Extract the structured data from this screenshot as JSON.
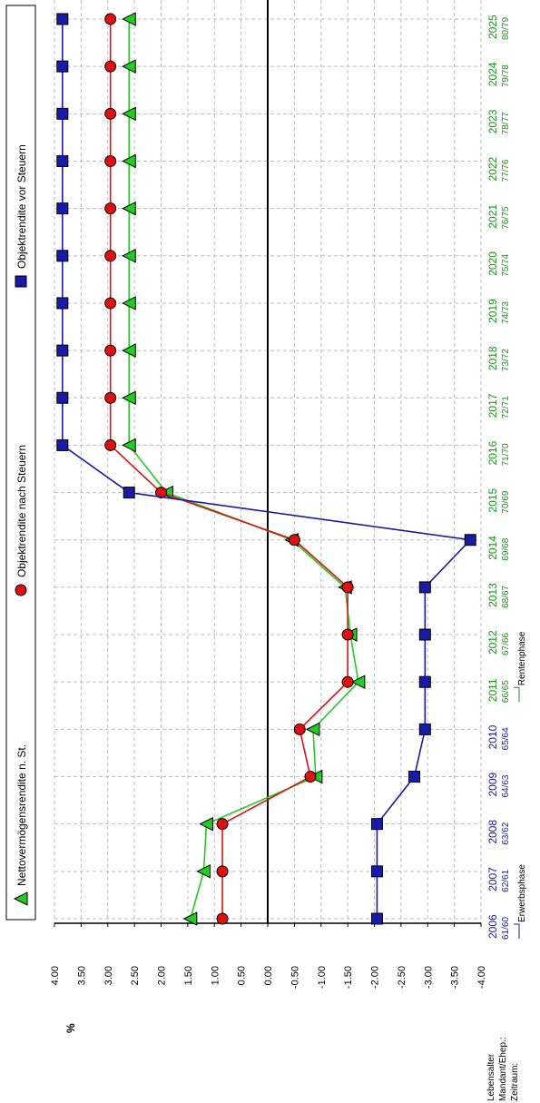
{
  "colors": {
    "nett": "#22cc22",
    "nach": "#dd1111",
    "vor": "#1a1aa8",
    "phase_blue": "#1a1aa8",
    "phase_green": "#159615",
    "grid": "#bdbdbd"
  },
  "bottom_labels": {
    "lebensalter": "Lebensalter",
    "mandant": "Mandant/Ehep.:",
    "zeitraum": "Zeitraum:"
  },
  "chart_data": {
    "type": "line",
    "ylabel": "%",
    "ylim": [
      -4,
      4
    ],
    "y_ticks": [
      "4.00",
      "3.50",
      "3.00",
      "2.50",
      "2.00",
      "1.50",
      "1.00",
      "0.50",
      "0.00",
      "-0.50",
      "-1.00",
      "-1.50",
      "-2.00",
      "-2.50",
      "-3.00",
      "-3.50",
      "-4.00"
    ],
    "y_tick_values": [
      4,
      3.5,
      3,
      2.5,
      2,
      1.5,
      1,
      0.5,
      0,
      -0.5,
      -1,
      -1.5,
      -2,
      -2.5,
      -3,
      -3.5,
      -4
    ],
    "categories": [
      "2006",
      "2007",
      "2008",
      "2009",
      "2010",
      "2011",
      "2012",
      "2013",
      "2014",
      "2015",
      "2016",
      "2017",
      "2018",
      "2019",
      "2020",
      "2021",
      "2022",
      "2023",
      "2024",
      "2025"
    ],
    "ages": [
      "61/60",
      "62/61",
      "63/62",
      "64/63",
      "65/64",
      "66/65",
      "67/66",
      "68/67",
      "69/68",
      "70/69",
      "71/70",
      "72/71",
      "73/72",
      "74/73",
      "75/74",
      "76/75",
      "77/76",
      "78/77",
      "79/78",
      "80/79"
    ],
    "phase_split_index": 5,
    "phases": [
      {
        "label": "Erwerbsphase",
        "start_index": 0
      },
      {
        "label": "Rentenphase",
        "start_index": 5
      }
    ],
    "series": [
      {
        "name": "Nettovermögensrendite n. St.",
        "marker": "triangle",
        "color_key": "nett",
        "values": [
          1.45,
          1.2,
          1.15,
          -0.9,
          -0.85,
          -1.7,
          -1.55,
          -1.45,
          -0.45,
          1.9,
          2.6,
          2.6,
          2.6,
          2.6,
          2.6,
          2.6,
          2.6,
          2.6,
          2.6,
          2.6
        ]
      },
      {
        "name": "Objektrendite nach Steuern",
        "marker": "circle",
        "color_key": "nach",
        "values": [
          0.85,
          0.85,
          0.85,
          -0.8,
          -0.6,
          -1.5,
          -1.5,
          -1.5,
          -0.5,
          2.0,
          2.95,
          2.95,
          2.95,
          2.95,
          2.95,
          2.95,
          2.95,
          2.95,
          2.95,
          2.95
        ]
      },
      {
        "name": "Objektrendite vor Steuern",
        "marker": "square",
        "color_key": "vor",
        "values": [
          -2.05,
          -2.05,
          -2.05,
          -2.75,
          -2.95,
          -2.95,
          -2.95,
          -2.95,
          -3.8,
          2.6,
          3.85,
          3.85,
          3.85,
          3.85,
          3.85,
          3.85,
          3.85,
          3.85,
          3.85,
          3.85
        ]
      }
    ],
    "grid": true,
    "legend_position": "top"
  }
}
